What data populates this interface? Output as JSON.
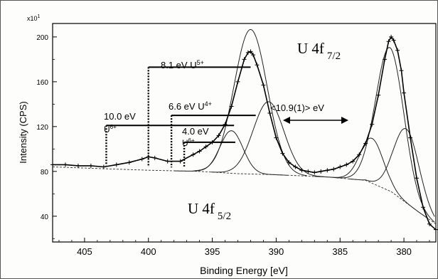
{
  "chart_data": {
    "type": "line",
    "xlabel": "Binding Energy [eV]",
    "ylabel": "Intensity (CPS)",
    "y_multiplier": "x10",
    "y_multiplier_exp": "1",
    "xlim": [
      407.5,
      377.5
    ],
    "ylim": [
      17,
      212
    ],
    "x_reversed": true,
    "x_ticks": [
      405,
      400,
      395,
      390,
      385,
      380
    ],
    "y_ticks": [
      40,
      80,
      120,
      160,
      200
    ],
    "grid": false,
    "series": [
      {
        "role": "measured",
        "marker": "+",
        "x": [
          407.5,
          406.5,
          405.5,
          404.5,
          403.5,
          402.5,
          401.5,
          400.5,
          400.0,
          399.5,
          398.5,
          397.5,
          396.5,
          396.0,
          395.5,
          395.0,
          394.5,
          394.0,
          393.5,
          393.0,
          392.5,
          392.2,
          392.0,
          391.8,
          391.5,
          391.0,
          390.5,
          390.0,
          389.5,
          389.0,
          388.5,
          388.0,
          387.5,
          387.0,
          386.5,
          386.0,
          385.5,
          385.0,
          384.5,
          384.0,
          383.5,
          383.0,
          382.5,
          382.0,
          381.5,
          381.2,
          381.0,
          380.8,
          380.5,
          380.2,
          380.0,
          379.5,
          379.0,
          378.5,
          378.0,
          377.5
        ],
        "y": [
          86,
          86,
          85,
          85,
          84,
          86,
          88,
          91,
          93,
          92,
          89,
          89,
          95,
          98,
          102,
          106,
          112,
          122,
          138,
          160,
          180,
          186,
          187,
          184,
          175,
          157,
          132,
          110,
          96,
          88,
          84,
          81,
          80,
          79,
          80,
          81,
          82,
          84,
          86,
          89,
          95,
          105,
          122,
          148,
          180,
          196,
          200,
          197,
          188,
          170,
          150,
          110,
          74,
          48,
          33,
          28
        ]
      },
      {
        "role": "component",
        "center": 392.0,
        "height": 129,
        "width": 1.3
      },
      {
        "role": "component",
        "center": 390.6,
        "height": 65,
        "width": 1.2
      },
      {
        "role": "component",
        "center": 393.5,
        "height": 38,
        "width": 0.9
      },
      {
        "role": "component",
        "center": 381.1,
        "height": 128,
        "width": 1.1
      },
      {
        "role": "component",
        "center": 379.8,
        "height": 66,
        "width": 1.0
      },
      {
        "role": "component",
        "center": 382.5,
        "height": 40,
        "width": 0.9
      }
    ],
    "background_line": {
      "x": [
        407.5,
        405,
        400,
        396,
        393,
        390,
        386,
        383,
        381,
        379,
        377.5
      ],
      "y": [
        84,
        83,
        81,
        80,
        78,
        77,
        75,
        72,
        62,
        45,
        33
      ]
    },
    "annotations": [
      {
        "id": "u5",
        "text": "8.1 eV U",
        "sup": "5+",
        "x_from": 400.0,
        "x_to": 392.0,
        "y_line": 173
      },
      {
        "id": "u4",
        "text": "6.6 eV U",
        "sup": "4+",
        "x_from": 398.2,
        "x_to": 391.6,
        "y_line": 130
      },
      {
        "id": "u6a",
        "text": "10.0 eV",
        "line2": "U",
        "line2_sup": "6+",
        "x_from": 403.3,
        "x_to": 393.3,
        "y_line": 121
      },
      {
        "id": "u6b",
        "text": "4.0 eV",
        "line2": "U",
        "line2_sup": "6+",
        "x_from": 397.2,
        "x_to": 393.2,
        "y_line": 106
      }
    ],
    "spin_orbit_label": "<10.9(1)> eV",
    "peak_labels": [
      {
        "id": "f72",
        "text": "U 4f",
        "sub": "7/2"
      },
      {
        "id": "f52",
        "text": "U 4f",
        "sub": "5/2"
      }
    ]
  }
}
